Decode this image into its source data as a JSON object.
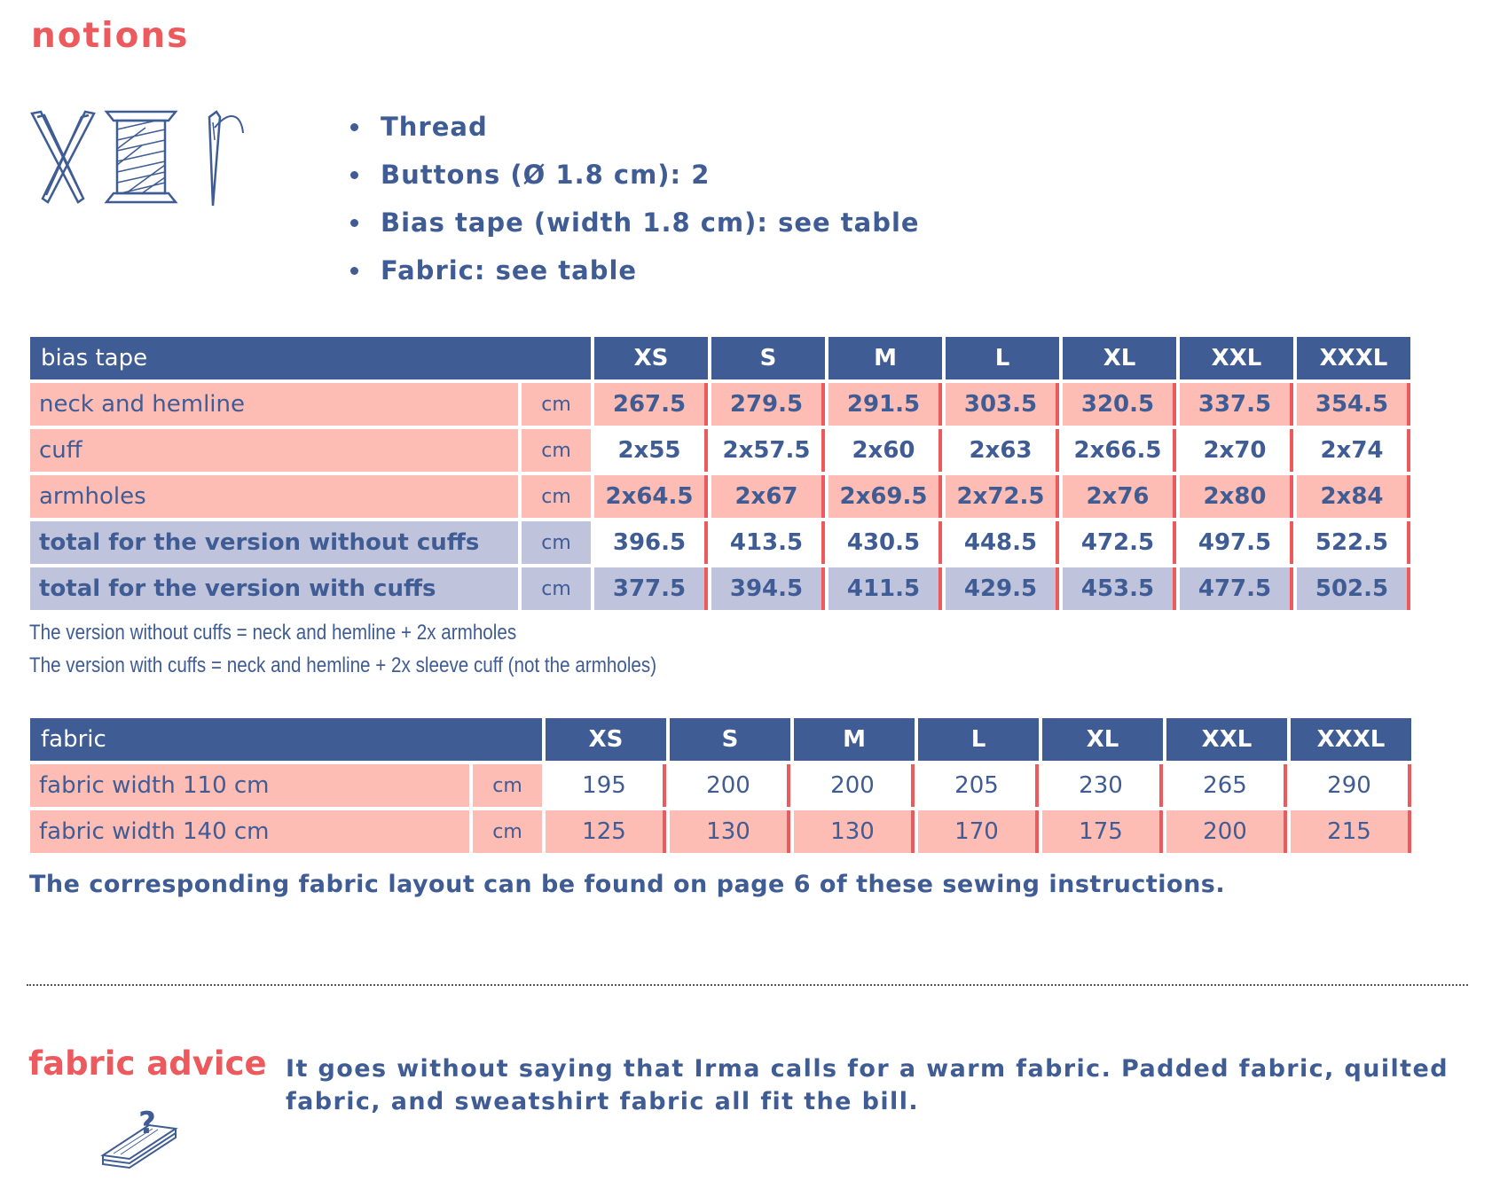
{
  "notions": {
    "title": "notions",
    "icons": [
      "scissors-icon",
      "thread-spool-icon",
      "needle-icon"
    ],
    "items": [
      "Thread",
      "Buttons (Ø 1.8 cm): 2",
      "Bias tape (width 1.8 cm): see table",
      "Fabric: see table"
    ]
  },
  "bias_table": {
    "header": "bias tape",
    "sizes": [
      "XS",
      "S",
      "M",
      "L",
      "XL",
      "XXL",
      "XXXL"
    ],
    "rows": [
      {
        "label": "neck and hemline",
        "unit": "cm",
        "values": [
          "267.5",
          "279.5",
          "291.5",
          "303.5",
          "320.5",
          "337.5",
          "354.5"
        ]
      },
      {
        "label": "cuff",
        "unit": "cm",
        "values": [
          "2x55",
          "2x57.5",
          "2x60",
          "2x63",
          "2x66.5",
          "2x70",
          "2x74"
        ]
      },
      {
        "label": "armholes",
        "unit": "cm",
        "values": [
          "2x64.5",
          "2x67",
          "2x69.5",
          "2x72.5",
          "2x76",
          "2x80",
          "2x84"
        ]
      },
      {
        "label": "total for the version without cuffs",
        "unit": "cm",
        "values": [
          "396.5",
          "413.5",
          "430.5",
          "448.5",
          "472.5",
          "497.5",
          "522.5"
        ]
      },
      {
        "label": "total for the version with cuffs",
        "unit": "cm",
        "values": [
          "377.5",
          "394.5",
          "411.5",
          "429.5",
          "453.5",
          "477.5",
          "502.5"
        ]
      }
    ],
    "notes": [
      "The version without cuffs = neck and hemline + 2x armholes",
      "The version with cuffs = neck and hemline + 2x sleeve cuff (not the armholes)"
    ]
  },
  "fabric_table": {
    "header": "fabric",
    "sizes": [
      "XS",
      "S",
      "M",
      "L",
      "XL",
      "XXL",
      "XXXL"
    ],
    "rows": [
      {
        "label": "fabric width 110 cm",
        "unit": "cm",
        "values": [
          "195",
          "200",
          "200",
          "205",
          "230",
          "265",
          "290"
        ]
      },
      {
        "label": "fabric width 140 cm",
        "unit": "cm",
        "values": [
          "125",
          "130",
          "130",
          "170",
          "175",
          "200",
          "215"
        ]
      }
    ],
    "note": "The corresponding fabric layout can be found on page 6 of these sewing instructions."
  },
  "fabric_advice": {
    "title": "fabric advice",
    "text": "It goes without saying that Irma calls for a warm fabric. Padded fabric, quilted fabric, and sweatshirt fabric all fit the bill.",
    "icon": "fabric-stack-question-icon",
    "icon_mark": "?"
  },
  "colors": {
    "accent": "#ec5a5e",
    "primary": "#3f5c94",
    "row_pink": "#fdbcb4",
    "row_lavender": "#bfc3db"
  }
}
